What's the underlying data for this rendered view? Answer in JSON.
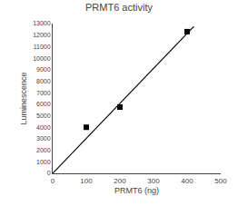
{
  "chart_data": {
    "type": "scatter",
    "title": "PRMT6 activity",
    "x_label": "PRMT6 (ng)",
    "y_label": "Luminescence",
    "series": [
      {
        "type": "line",
        "color": "black",
        "line_style": "solid",
        "x": [
          0,
          420
        ],
        "values": [
          0,
          12750
        ]
      },
      {
        "type": "scatter",
        "color": "black",
        "marker": "square",
        "x": [
          100,
          200,
          400
        ],
        "values": [
          4000,
          5750,
          12300
        ]
      }
    ],
    "xlim": [
      0,
      500
    ],
    "ylim": [
      0,
      13000
    ],
    "xticks": [
      0,
      100,
      200,
      300,
      400,
      500
    ],
    "yticks": [
      0,
      1000,
      2000,
      3000,
      4000,
      5000,
      6000,
      7000,
      8000,
      9000,
      10000,
      11000,
      12000,
      13000
    ],
    "grid": false
  }
}
